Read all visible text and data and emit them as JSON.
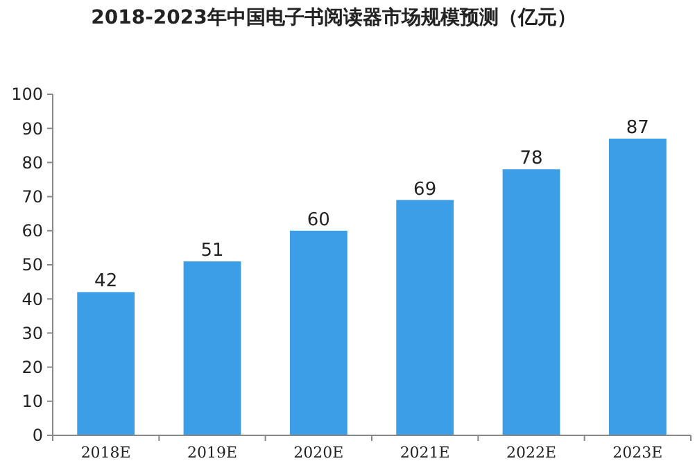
{
  "chart_data": {
    "type": "bar",
    "title": "2018-2023年中国电子书阅读器市场规模预测（亿元）",
    "categories": [
      "2018E",
      "2019E",
      "2020E",
      "2021E",
      "2022E",
      "2023E"
    ],
    "values": [
      42,
      51,
      60,
      69,
      78,
      87
    ],
    "color": "#3d9ee8",
    "ylim": [
      0,
      100
    ],
    "yticks": [
      0,
      10,
      20,
      30,
      40,
      50,
      60,
      70,
      80,
      90,
      100
    ],
    "grid": false,
    "data_labels": true
  }
}
